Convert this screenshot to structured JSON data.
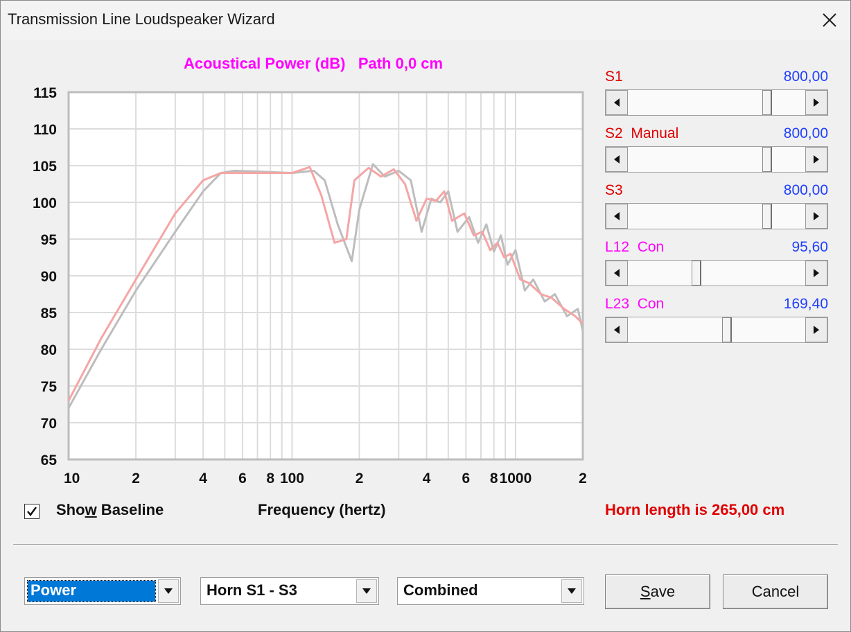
{
  "window": {
    "title": "Transmission Line Loudspeaker Wizard"
  },
  "chart_header": "Acoustical Power (dB)   Path 0,0 cm",
  "chart_data": {
    "type": "line",
    "x_scale": "log",
    "xlim": [
      10,
      2000
    ],
    "ylim": [
      65,
      115
    ],
    "yticks": [
      "115",
      "110",
      "105",
      "100",
      "95",
      "90",
      "85",
      "80",
      "75",
      "70",
      "65"
    ],
    "xticks": [
      {
        "value": 10,
        "label": "10"
      },
      {
        "value": 20,
        "label": "2"
      },
      {
        "value": 40,
        "label": "4"
      },
      {
        "value": 60,
        "label": "6"
      },
      {
        "value": 80,
        "label": "8"
      },
      {
        "value": 100,
        "label": "100"
      },
      {
        "value": 200,
        "label": "2"
      },
      {
        "value": 400,
        "label": "4"
      },
      {
        "value": 600,
        "label": "6"
      },
      {
        "value": 800,
        "label": "8"
      },
      {
        "value": 1000,
        "label": "1000"
      },
      {
        "value": 2000,
        "label": "2"
      }
    ],
    "xlabel": "Frequency (hertz)",
    "grid": true,
    "series": [
      {
        "color": "#bdbdbd",
        "x": [
          10,
          14,
          20,
          30,
          40,
          48,
          55,
          70,
          100,
          125,
          140,
          160,
          185,
          200,
          230,
          260,
          300,
          340,
          380,
          420,
          460,
          500,
          550,
          620,
          680,
          740,
          800,
          860,
          920,
          1000,
          1100,
          1200,
          1350,
          1500,
          1700,
          1900,
          2000
        ],
        "y": [
          72,
          80,
          88,
          96,
          101.5,
          104,
          104.3,
          104.2,
          104,
          104.3,
          103,
          97,
          92,
          99,
          105.2,
          103.5,
          104.3,
          103,
          96,
          100.5,
          100,
          101.5,
          96,
          98,
          94.5,
          97,
          93.3,
          95.5,
          91.5,
          93.5,
          88,
          89.5,
          86.5,
          87.5,
          84.5,
          85.5,
          82.5
        ]
      },
      {
        "color": "#f5a5a5",
        "x": [
          10,
          14,
          20,
          30,
          40,
          48,
          55,
          70,
          100,
          120,
          135,
          155,
          175,
          190,
          220,
          250,
          285,
          320,
          360,
          400,
          440,
          480,
          520,
          590,
          650,
          710,
          770,
          830,
          890,
          950,
          1050,
          1150,
          1300,
          1450,
          1650,
          1850,
          2000
        ],
        "y": [
          73,
          81.5,
          89.5,
          98.5,
          103,
          104,
          104,
          104,
          104,
          104.8,
          101,
          94.5,
          95,
          103,
          104.7,
          103.5,
          104.5,
          102.5,
          97.5,
          100.5,
          100.2,
          101.5,
          97.5,
          98.5,
          95.5,
          96,
          93.5,
          94.5,
          92.5,
          93,
          89.5,
          89,
          87.5,
          87,
          85.5,
          84.5,
          83.5
        ]
      }
    ]
  },
  "sliders": [
    {
      "label": "S1",
      "label_color": "#e00000",
      "value": "800,00",
      "position": 0.8
    },
    {
      "label": "S2  Manual",
      "label_color": "#e00000",
      "value": "800,00",
      "position": 0.8
    },
    {
      "label": "S3",
      "label_color": "#e00000",
      "value": "800,00",
      "position": 0.8
    },
    {
      "label": "L12  Con",
      "label_color": "#ff00ff",
      "value": "95,60",
      "position": 0.38
    },
    {
      "label": "L23  Con",
      "label_color": "#ff00ff",
      "value": "169,40",
      "position": 0.56
    }
  ],
  "baseline": {
    "label_prefix": "Sho",
    "label_mnemonic": "w",
    "label_suffix": " Baseline",
    "checked": true
  },
  "horn_length": "Horn length is 265,00 cm",
  "dropdowns": [
    {
      "value": "Power",
      "selected": true
    },
    {
      "value": "Horn S1 - S3",
      "selected": false
    },
    {
      "value": "Combined",
      "selected": false
    }
  ],
  "buttons": {
    "save_mnemonic": "S",
    "save_rest": "ave",
    "cancel": "Cancel"
  }
}
